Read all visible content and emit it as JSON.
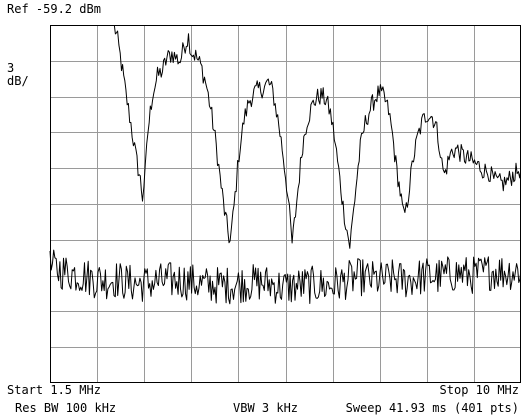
{
  "header": {
    "ref_level": "Ref -59.2 dBm",
    "scale_value": "3",
    "scale_unit": "dB/"
  },
  "footer": {
    "start": "Start 1.5 MHz",
    "stop": "Stop 10 MHz",
    "rbw": "Res BW 100 kHz",
    "vbw": "VBW 3 kHz",
    "sweep": "Sweep 41.93 ms (401 pts)"
  },
  "chart_data": {
    "type": "line",
    "title": "",
    "xlabel": "",
    "ylabel": "",
    "x_unit": "MHz",
    "y_unit": "dBm",
    "xlim": [
      1.5,
      10
    ],
    "ylim": [
      -89.2,
      -59.2
    ],
    "x_divisions": 10,
    "y_divisions": 10,
    "grid": true,
    "series": [
      {
        "points": [
          [
            2.66,
            -59.2
          ],
          [
            2.72,
            -60.5
          ],
          [
            2.79,
            -62.5
          ],
          [
            2.87,
            -65.0
          ],
          [
            2.96,
            -67.5
          ],
          [
            3.05,
            -70.2
          ],
          [
            3.13,
            -72.2
          ],
          [
            3.17,
            -73.6
          ],
          [
            3.22,
            -71.5
          ],
          [
            3.27,
            -68.0
          ],
          [
            3.35,
            -65.0
          ],
          [
            3.44,
            -63.5
          ],
          [
            3.53,
            -63.0
          ],
          [
            3.61,
            -62.0
          ],
          [
            3.7,
            -61.6
          ],
          [
            3.79,
            -62.0
          ],
          [
            3.85,
            -62.2
          ],
          [
            3.92,
            -61.0
          ],
          [
            4.0,
            -60.2
          ],
          [
            4.05,
            -61.4
          ],
          [
            4.13,
            -61.8
          ],
          [
            4.22,
            -62.6
          ],
          [
            4.31,
            -64.0
          ],
          [
            4.4,
            -66.2
          ],
          [
            4.5,
            -69.3
          ],
          [
            4.57,
            -72.0
          ],
          [
            4.65,
            -74.8
          ],
          [
            4.71,
            -76.5
          ],
          [
            4.75,
            -77.4
          ],
          [
            4.8,
            -75.4
          ],
          [
            4.86,
            -72.5
          ],
          [
            4.91,
            -70.0
          ],
          [
            5.0,
            -67.2
          ],
          [
            5.09,
            -65.6
          ],
          [
            5.18,
            -64.9
          ],
          [
            5.26,
            -64.6
          ],
          [
            5.35,
            -64.5
          ],
          [
            5.44,
            -64.0
          ],
          [
            5.52,
            -64.8
          ],
          [
            5.61,
            -67.0
          ],
          [
            5.69,
            -69.5
          ],
          [
            5.77,
            -72.5
          ],
          [
            5.82,
            -75.0
          ],
          [
            5.87,
            -77.5
          ],
          [
            5.93,
            -75.0
          ],
          [
            6.0,
            -71.8
          ],
          [
            6.06,
            -69.2
          ],
          [
            6.14,
            -67.2
          ],
          [
            6.23,
            -66.0
          ],
          [
            6.31,
            -65.3
          ],
          [
            6.41,
            -65.1
          ],
          [
            6.49,
            -65.6
          ],
          [
            6.56,
            -66.6
          ],
          [
            6.63,
            -68.5
          ],
          [
            6.71,
            -71.4
          ],
          [
            6.79,
            -74.4
          ],
          [
            6.86,
            -76.4
          ],
          [
            6.91,
            -77.7
          ],
          [
            6.96,
            -75.6
          ],
          [
            7.02,
            -72.8
          ],
          [
            7.1,
            -69.5
          ],
          [
            7.19,
            -67.4
          ],
          [
            7.28,
            -66.2
          ],
          [
            7.36,
            -65.4
          ],
          [
            7.44,
            -64.8
          ],
          [
            7.53,
            -65.3
          ],
          [
            7.61,
            -66.4
          ],
          [
            7.68,
            -68.4
          ],
          [
            7.74,
            -70.8
          ],
          [
            7.82,
            -73.2
          ],
          [
            7.88,
            -75.2
          ],
          [
            7.93,
            -74.7
          ],
          [
            7.99,
            -72.6
          ],
          [
            8.06,
            -70.3
          ],
          [
            8.14,
            -68.5
          ],
          [
            8.23,
            -67.2
          ],
          [
            8.32,
            -66.6
          ],
          [
            8.4,
            -66.9
          ],
          [
            8.46,
            -67.5
          ],
          [
            8.52,
            -69.0
          ],
          [
            8.57,
            -70.8
          ],
          [
            8.62,
            -71.8
          ],
          [
            8.68,
            -70.7
          ],
          [
            8.75,
            -69.8
          ],
          [
            8.84,
            -69.6
          ],
          [
            8.92,
            -70.0
          ],
          [
            9.0,
            -70.3
          ],
          [
            9.08,
            -70.5
          ],
          [
            9.16,
            -70.8
          ],
          [
            9.24,
            -71.0
          ],
          [
            9.33,
            -71.4
          ],
          [
            9.42,
            -71.5
          ],
          [
            9.51,
            -72.2
          ],
          [
            9.6,
            -72.4
          ],
          [
            9.68,
            -72.5
          ],
          [
            9.77,
            -72.2
          ],
          [
            9.85,
            -71.8
          ],
          [
            9.93,
            -71.5
          ],
          [
            10.0,
            -71.2
          ]
        ]
      },
      {
        "points": [
          [
            1.5,
            -79.5
          ],
          [
            1.7,
            -79.8
          ],
          [
            1.9,
            -80.0
          ],
          [
            2.1,
            -80.2
          ],
          [
            2.3,
            -80.5
          ],
          [
            2.5,
            -80.6
          ],
          [
            2.7,
            -80.5
          ],
          [
            2.9,
            -80.8
          ],
          [
            3.1,
            -80.9
          ],
          [
            3.3,
            -80.8
          ],
          [
            3.5,
            -80.7
          ],
          [
            3.7,
            -80.6
          ],
          [
            3.9,
            -80.6
          ],
          [
            4.1,
            -80.8
          ],
          [
            4.3,
            -81.0
          ],
          [
            4.5,
            -81.0
          ],
          [
            4.7,
            -81.0
          ],
          [
            4.9,
            -80.9
          ],
          [
            5.1,
            -80.8
          ],
          [
            5.3,
            -80.8
          ],
          [
            5.5,
            -80.9
          ],
          [
            5.7,
            -81.2
          ],
          [
            5.9,
            -81.1
          ],
          [
            6.1,
            -81.0
          ],
          [
            6.3,
            -81.0
          ],
          [
            6.5,
            -81.1
          ],
          [
            6.7,
            -80.9
          ],
          [
            6.9,
            -80.5
          ],
          [
            7.1,
            -80.3
          ],
          [
            7.3,
            -80.5
          ],
          [
            7.5,
            -80.6
          ],
          [
            7.7,
            -80.4
          ],
          [
            7.9,
            -80.6
          ],
          [
            8.1,
            -80.4
          ],
          [
            8.3,
            -80.2
          ],
          [
            8.5,
            -80.3
          ],
          [
            8.7,
            -80.1
          ],
          [
            8.9,
            -80.0
          ],
          [
            9.1,
            -80.2
          ],
          [
            9.3,
            -80.0
          ],
          [
            9.5,
            -79.8
          ],
          [
            9.7,
            -79.9
          ],
          [
            9.9,
            -79.8
          ],
          [
            10.0,
            -79.7
          ]
        ]
      }
    ]
  }
}
